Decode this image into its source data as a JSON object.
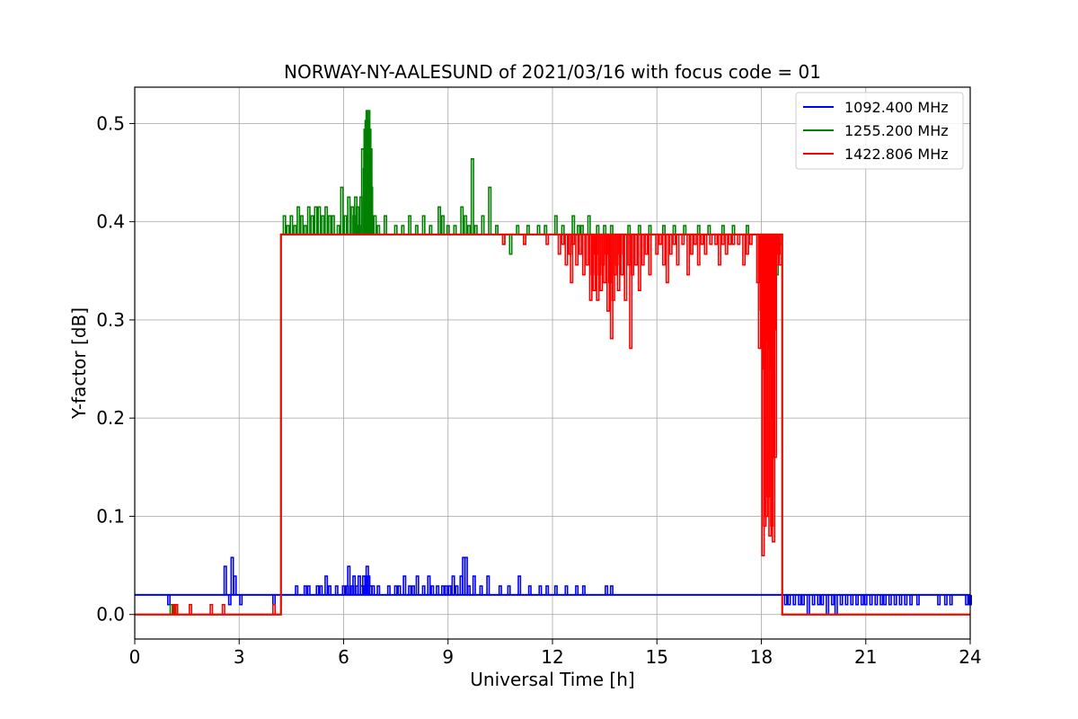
{
  "chart_data": {
    "type": "line",
    "title": "NORWAY-NY-AALESUND of 2021/03/16 with focus code = 01",
    "xlabel": "Universal Time [h]",
    "ylabel": "Y-factor [dB]",
    "xlim": [
      0,
      24
    ],
    "ylim": [
      -0.025,
      0.537
    ],
    "xticks": [
      0,
      3,
      6,
      9,
      12,
      15,
      18,
      21,
      24
    ],
    "yticks": [
      0.0,
      0.1,
      0.2,
      0.3,
      0.4,
      0.5
    ],
    "xtick_labels": [
      "0",
      "3",
      "6",
      "9",
      "12",
      "15",
      "18",
      "21",
      "24"
    ],
    "ytick_labels": [
      "0.0",
      "0.1",
      "0.2",
      "0.3",
      "0.4",
      "0.5"
    ],
    "grid": true,
    "legend_position": "top-right",
    "series": [
      {
        "name": "1092.400 MHz",
        "color": "#0000ff",
        "baseline": [
          [
            0.0,
            0.02
          ],
          [
            24.0,
            0.02
          ]
        ],
        "spikes": [
          [
            0.98,
            0.01
          ],
          [
            2.6,
            0.049
          ],
          [
            2.73,
            0.01
          ],
          [
            2.8,
            0.058
          ],
          [
            2.88,
            0.039
          ],
          [
            3.05,
            0.01
          ],
          [
            4.0,
            0.01
          ],
          [
            4.65,
            0.029
          ],
          [
            4.9,
            0.029
          ],
          [
            5.0,
            0.029
          ],
          [
            5.25,
            0.029
          ],
          [
            5.35,
            0.029
          ],
          [
            5.5,
            0.039
          ],
          [
            5.6,
            0.029
          ],
          [
            5.8,
            0.029
          ],
          [
            6.0,
            0.029
          ],
          [
            6.1,
            0.029
          ],
          [
            6.15,
            0.049
          ],
          [
            6.25,
            0.029
          ],
          [
            6.3,
            0.039
          ],
          [
            6.38,
            0.029
          ],
          [
            6.45,
            0.039
          ],
          [
            6.52,
            0.029
          ],
          [
            6.58,
            0.039
          ],
          [
            6.62,
            0.029
          ],
          [
            6.68,
            0.049
          ],
          [
            6.72,
            0.039
          ],
          [
            6.78,
            0.029
          ],
          [
            6.85,
            0.029
          ],
          [
            7.0,
            0.029
          ],
          [
            7.3,
            0.029
          ],
          [
            7.5,
            0.029
          ],
          [
            7.6,
            0.029
          ],
          [
            7.75,
            0.039
          ],
          [
            7.9,
            0.029
          ],
          [
            8.0,
            0.029
          ],
          [
            8.12,
            0.039
          ],
          [
            8.3,
            0.029
          ],
          [
            8.45,
            0.039
          ],
          [
            8.55,
            0.029
          ],
          [
            8.7,
            0.029
          ],
          [
            8.85,
            0.029
          ],
          [
            8.95,
            0.029
          ],
          [
            9.05,
            0.029
          ],
          [
            9.15,
            0.039
          ],
          [
            9.25,
            0.029
          ],
          [
            9.38,
            0.039
          ],
          [
            9.45,
            0.058
          ],
          [
            9.52,
            0.058
          ],
          [
            9.6,
            0.029
          ],
          [
            9.75,
            0.039
          ],
          [
            9.95,
            0.029
          ],
          [
            10.15,
            0.039
          ],
          [
            10.5,
            0.029
          ],
          [
            10.75,
            0.029
          ],
          [
            11.05,
            0.039
          ],
          [
            11.35,
            0.029
          ],
          [
            11.65,
            0.029
          ],
          [
            11.85,
            0.029
          ],
          [
            12.1,
            0.029
          ],
          [
            12.4,
            0.029
          ],
          [
            12.7,
            0.029
          ],
          [
            12.9,
            0.029
          ],
          [
            13.55,
            0.029
          ],
          [
            13.7,
            0.029
          ],
          [
            18.7,
            0.01
          ],
          [
            18.8,
            0.01
          ],
          [
            18.95,
            0.01
          ],
          [
            19.1,
            0.01
          ],
          [
            19.2,
            0.01
          ],
          [
            19.35,
            0.0
          ],
          [
            19.5,
            0.01
          ],
          [
            19.65,
            0.01
          ],
          [
            19.75,
            0.01
          ],
          [
            19.9,
            0.0
          ],
          [
            20.05,
            0.01
          ],
          [
            20.15,
            0.0
          ],
          [
            20.3,
            0.01
          ],
          [
            20.45,
            0.01
          ],
          [
            20.6,
            0.01
          ],
          [
            20.75,
            0.01
          ],
          [
            20.9,
            0.01
          ],
          [
            21.0,
            0.01
          ],
          [
            21.15,
            0.01
          ],
          [
            21.3,
            0.01
          ],
          [
            21.45,
            0.01
          ],
          [
            21.55,
            0.01
          ],
          [
            21.7,
            0.01
          ],
          [
            21.85,
            0.01
          ],
          [
            22.0,
            0.01
          ],
          [
            22.15,
            0.01
          ],
          [
            22.3,
            0.01
          ],
          [
            22.5,
            0.01
          ],
          [
            23.1,
            0.01
          ],
          [
            23.3,
            0.01
          ],
          [
            23.45,
            0.01
          ],
          [
            23.9,
            0.01
          ],
          [
            24.0,
            0.01
          ]
        ]
      },
      {
        "name": "1255.200 MHz",
        "color": "#008000",
        "baseline": [
          [
            0.0,
            0.0
          ],
          [
            4.2,
            0.0
          ],
          [
            4.2,
            0.387
          ],
          [
            18.6,
            0.387
          ],
          [
            18.6,
            0.0
          ],
          [
            24.0,
            0.0
          ]
        ],
        "spikes": [
          [
            1.05,
            0.01
          ],
          [
            1.15,
            0.01
          ],
          [
            1.2,
            0.01
          ],
          [
            4.3,
            0.406
          ],
          [
            4.4,
            0.396
          ],
          [
            4.5,
            0.406
          ],
          [
            4.6,
            0.396
          ],
          [
            4.7,
            0.415
          ],
          [
            4.8,
            0.406
          ],
          [
            4.9,
            0.396
          ],
          [
            5.0,
            0.415
          ],
          [
            5.1,
            0.406
          ],
          [
            5.2,
            0.415
          ],
          [
            5.3,
            0.415
          ],
          [
            5.4,
            0.406
          ],
          [
            5.5,
            0.415
          ],
          [
            5.6,
            0.406
          ],
          [
            5.7,
            0.406
          ],
          [
            5.85,
            0.396
          ],
          [
            5.95,
            0.435
          ],
          [
            6.05,
            0.406
          ],
          [
            6.15,
            0.425
          ],
          [
            6.25,
            0.415
          ],
          [
            6.3,
            0.406
          ],
          [
            6.35,
            0.425
          ],
          [
            6.4,
            0.415
          ],
          [
            6.45,
            0.396
          ],
          [
            6.5,
            0.425
          ],
          [
            6.55,
            0.474
          ],
          [
            6.6,
            0.454
          ],
          [
            6.62,
            0.494
          ],
          [
            6.65,
            0.503
          ],
          [
            6.68,
            0.513
          ],
          [
            6.7,
            0.503
          ],
          [
            6.72,
            0.513
          ],
          [
            6.75,
            0.494
          ],
          [
            6.78,
            0.474
          ],
          [
            6.8,
            0.435
          ],
          [
            6.9,
            0.406
          ],
          [
            7.0,
            0.396
          ],
          [
            7.2,
            0.406
          ],
          [
            7.5,
            0.396
          ],
          [
            7.7,
            0.396
          ],
          [
            7.9,
            0.406
          ],
          [
            8.1,
            0.396
          ],
          [
            8.3,
            0.406
          ],
          [
            8.5,
            0.396
          ],
          [
            8.75,
            0.415
          ],
          [
            8.85,
            0.406
          ],
          [
            9.0,
            0.396
          ],
          [
            9.2,
            0.396
          ],
          [
            9.4,
            0.415
          ],
          [
            9.5,
            0.406
          ],
          [
            9.6,
            0.396
          ],
          [
            9.7,
            0.464
          ],
          [
            9.8,
            0.396
          ],
          [
            10.0,
            0.406
          ],
          [
            10.2,
            0.435
          ],
          [
            10.4,
            0.396
          ],
          [
            10.6,
            0.377
          ],
          [
            10.8,
            0.367
          ],
          [
            11.0,
            0.396
          ],
          [
            11.2,
            0.377
          ],
          [
            11.3,
            0.396
          ],
          [
            11.6,
            0.396
          ],
          [
            11.8,
            0.396
          ],
          [
            12.1,
            0.406
          ],
          [
            12.3,
            0.396
          ],
          [
            12.6,
            0.406
          ],
          [
            12.75,
            0.396
          ],
          [
            12.85,
            0.396
          ],
          [
            13.05,
            0.406
          ],
          [
            13.3,
            0.396
          ],
          [
            13.5,
            0.396
          ],
          [
            13.7,
            0.396
          ],
          [
            14.2,
            0.396
          ],
          [
            14.5,
            0.396
          ],
          [
            14.8,
            0.396
          ],
          [
            15.2,
            0.396
          ],
          [
            15.5,
            0.396
          ],
          [
            15.8,
            0.396
          ],
          [
            16.2,
            0.396
          ],
          [
            16.5,
            0.396
          ],
          [
            16.9,
            0.396
          ],
          [
            17.2,
            0.396
          ],
          [
            17.6,
            0.396
          ],
          [
            18.0,
            0.377
          ],
          [
            18.05,
            0.309
          ],
          [
            18.1,
            0.346
          ],
          [
            18.15,
            0.367
          ],
          [
            18.2,
            0.377
          ],
          [
            18.25,
            0.338
          ],
          [
            18.3,
            0.356
          ],
          [
            18.35,
            0.367
          ],
          [
            18.4,
            0.377
          ],
          [
            18.45,
            0.346
          ],
          [
            18.5,
            0.367
          ],
          [
            18.55,
            0.377
          ]
        ]
      },
      {
        "name": "1422.806 MHz",
        "color": "#ff0000",
        "baseline": [
          [
            0.0,
            0.0
          ],
          [
            4.2,
            0.0
          ],
          [
            4.2,
            0.387
          ],
          [
            18.6,
            0.387
          ],
          [
            18.6,
            0.0
          ],
          [
            24.0,
            0.0
          ]
        ],
        "spikes": [
          [
            1.12,
            0.01
          ],
          [
            1.2,
            0.01
          ],
          [
            1.6,
            0.01
          ],
          [
            2.2,
            0.01
          ],
          [
            2.55,
            0.01
          ],
          [
            4.0,
            0.01
          ],
          [
            6.4,
            0.387
          ],
          [
            10.6,
            0.377
          ],
          [
            11.2,
            0.377
          ],
          [
            11.5,
            0.387
          ],
          [
            11.85,
            0.377
          ],
          [
            12.1,
            0.387
          ],
          [
            12.2,
            0.367
          ],
          [
            12.3,
            0.377
          ],
          [
            12.4,
            0.356
          ],
          [
            12.5,
            0.367
          ],
          [
            12.55,
            0.338
          ],
          [
            12.6,
            0.377
          ],
          [
            12.7,
            0.356
          ],
          [
            12.8,
            0.367
          ],
          [
            12.9,
            0.346
          ],
          [
            13.0,
            0.356
          ],
          [
            13.1,
            0.32
          ],
          [
            13.15,
            0.346
          ],
          [
            13.2,
            0.33
          ],
          [
            13.25,
            0.367
          ],
          [
            13.3,
            0.32
          ],
          [
            13.35,
            0.346
          ],
          [
            13.4,
            0.33
          ],
          [
            13.45,
            0.356
          ],
          [
            13.5,
            0.338
          ],
          [
            13.55,
            0.367
          ],
          [
            13.6,
            0.309
          ],
          [
            13.65,
            0.338
          ],
          [
            13.7,
            0.281
          ],
          [
            13.75,
            0.32
          ],
          [
            13.8,
            0.346
          ],
          [
            13.85,
            0.356
          ],
          [
            13.9,
            0.33
          ],
          [
            13.95,
            0.367
          ],
          [
            14.0,
            0.346
          ],
          [
            14.1,
            0.32
          ],
          [
            14.2,
            0.356
          ],
          [
            14.25,
            0.271
          ],
          [
            14.3,
            0.346
          ],
          [
            14.4,
            0.356
          ],
          [
            14.5,
            0.33
          ],
          [
            14.6,
            0.356
          ],
          [
            14.7,
            0.367
          ],
          [
            14.8,
            0.346
          ],
          [
            15.0,
            0.367
          ],
          [
            15.1,
            0.377
          ],
          [
            15.2,
            0.356
          ],
          [
            15.3,
            0.338
          ],
          [
            15.4,
            0.367
          ],
          [
            15.5,
            0.377
          ],
          [
            15.6,
            0.356
          ],
          [
            15.75,
            0.377
          ],
          [
            15.9,
            0.346
          ],
          [
            16.0,
            0.367
          ],
          [
            16.1,
            0.377
          ],
          [
            16.2,
            0.356
          ],
          [
            16.3,
            0.377
          ],
          [
            16.4,
            0.367
          ],
          [
            16.55,
            0.377
          ],
          [
            16.7,
            0.377
          ],
          [
            16.8,
            0.356
          ],
          [
            16.9,
            0.377
          ],
          [
            17.0,
            0.367
          ],
          [
            17.1,
            0.377
          ],
          [
            17.2,
            0.377
          ],
          [
            17.35,
            0.377
          ],
          [
            17.5,
            0.356
          ],
          [
            17.6,
            0.367
          ],
          [
            17.7,
            0.377
          ],
          [
            17.9,
            0.338
          ],
          [
            17.95,
            0.271
          ],
          [
            18.0,
            0.31
          ],
          [
            18.05,
            0.06
          ],
          [
            18.08,
            0.25
          ],
          [
            18.1,
            0.09
          ],
          [
            18.13,
            0.28
          ],
          [
            18.15,
            0.1
          ],
          [
            18.18,
            0.3
          ],
          [
            18.2,
            0.12
          ],
          [
            18.23,
            0.27
          ],
          [
            18.25,
            0.08
          ],
          [
            18.28,
            0.25
          ],
          [
            18.3,
            0.09
          ],
          [
            18.33,
            0.2
          ],
          [
            18.35,
            0.074
          ],
          [
            18.38,
            0.29
          ],
          [
            18.4,
            0.16
          ],
          [
            18.45,
            0.356
          ],
          [
            18.5,
            0.367
          ],
          [
            18.55,
            0.356
          ]
        ]
      }
    ]
  }
}
